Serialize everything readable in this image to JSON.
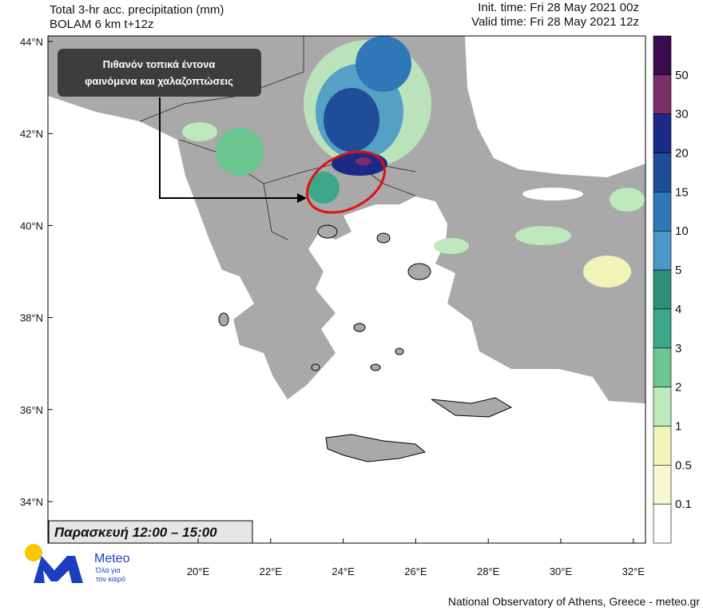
{
  "header": {
    "title": "Total 3-hr acc. precipitation (mm)",
    "model": "BOLAM 6 km t+12z",
    "init_time": "Init. time: Fri 28 May 2021 00z",
    "valid_time": "Valid time: Fri 28 May 2021 12z"
  },
  "annotation": {
    "lines": [
      "Πιθανόν τοπικά έντονα",
      "φαινόμενα και χαλαζοπτώσεις"
    ]
  },
  "time_label": "Παρασκευή  12:00 – 15:00",
  "latitude_labels": [
    "44°N",
    "42°N",
    "40°N",
    "38°N",
    "36°N",
    "34°N"
  ],
  "longitude_labels": [
    "20°E",
    "22°E",
    "24°E",
    "26°E",
    "28°E",
    "30°E",
    "32°E"
  ],
  "colorbar": {
    "labels": [
      "50",
      "30",
      "20",
      "15",
      "10",
      "5",
      "4",
      "3",
      "2",
      "1",
      "0.5",
      "0.1"
    ],
    "colors": [
      "#3a0b4e",
      "#7a2e6a",
      "#1b2a86",
      "#1f4d98",
      "#2f77b6",
      "#4a98c7",
      "#2e8e79",
      "#3ca889",
      "#6cc692",
      "#bde9bd",
      "#eef5b6",
      "#f7fad0",
      "#ffffff"
    ]
  },
  "logo": {
    "name": "Meteo",
    "tagline": [
      "Όλα για",
      "τον καιρό"
    ]
  },
  "footer": "National Observatory of Athens, Greece - meteo.gr"
}
